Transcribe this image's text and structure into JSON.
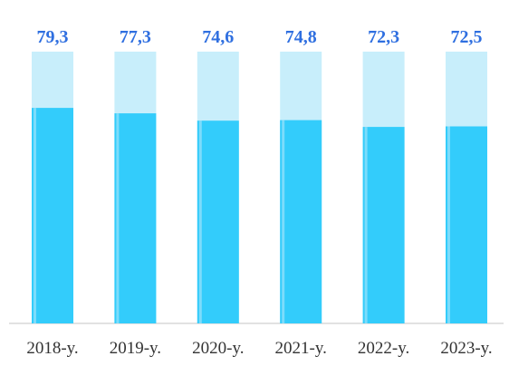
{
  "chart_data": {
    "type": "bar",
    "categories": [
      "2018-y.",
      "2019-y.",
      "2020-y.",
      "2021-y.",
      "2022-y.",
      "2023-y."
    ],
    "values": [
      79.3,
      77.3,
      74.6,
      74.8,
      72.3,
      72.5
    ],
    "value_labels": [
      "79,3",
      "77,3",
      "74,6",
      "74,8",
      "72,3",
      "72,5"
    ],
    "ylim": [
      0,
      100
    ],
    "grid": false,
    "colors": {
      "bar_fill": "#33ccfb",
      "bar_background": "#c8eefb",
      "bar_highlight": "#9be3fb",
      "value_label": "#2f6fe0",
      "baseline": "#d9d9d9"
    }
  }
}
